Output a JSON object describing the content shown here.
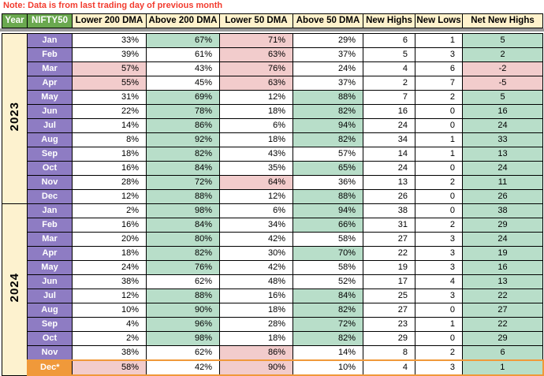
{
  "note": "Note: Data is from last trading day of previous month",
  "colors": {
    "note_red": "#f23b2e",
    "header_tan": "#fff2cc",
    "header_green": "#6aa84f",
    "year_cream": "#fdf2cf",
    "month_purple": "#8e7cc3",
    "dec_orange": "#f0993a",
    "cell_green": "#b8dec9",
    "cell_pink": "#f2cccc",
    "frozen_band_gray": "#9b9b9b"
  },
  "table": {
    "headers": [
      "Year",
      "NIFTY50",
      "Lower 200 DMA",
      "Above 200 DMA",
      "Lower 50 DMA",
      "Above 50 DMA",
      "New Highs",
      "New Lows",
      "Net New Highs"
    ],
    "years": [
      {
        "label": "2023",
        "rows": [
          {
            "month": "Jan",
            "values": [
              "33%",
              "67%",
              "71%",
              "29%",
              "6",
              "1",
              "5"
            ],
            "fills": [
              "w",
              "g",
              "p",
              "w",
              "w",
              "w",
              "g"
            ]
          },
          {
            "month": "Feb",
            "values": [
              "39%",
              "61%",
              "63%",
              "37%",
              "5",
              "3",
              "2"
            ],
            "fills": [
              "w",
              "w",
              "p",
              "w",
              "w",
              "w",
              "g"
            ]
          },
          {
            "month": "Mar",
            "values": [
              "57%",
              "43%",
              "76%",
              "24%",
              "4",
              "6",
              "-2"
            ],
            "fills": [
              "p",
              "w",
              "p",
              "w",
              "w",
              "w",
              "p"
            ]
          },
          {
            "month": "Apr",
            "values": [
              "55%",
              "45%",
              "63%",
              "37%",
              "2",
              "7",
              "-5"
            ],
            "fills": [
              "p",
              "w",
              "p",
              "w",
              "w",
              "w",
              "p"
            ]
          },
          {
            "month": "May",
            "values": [
              "31%",
              "69%",
              "12%",
              "88%",
              "7",
              "2",
              "5"
            ],
            "fills": [
              "w",
              "g",
              "w",
              "g",
              "w",
              "w",
              "g"
            ]
          },
          {
            "month": "Jun",
            "values": [
              "22%",
              "78%",
              "18%",
              "82%",
              "16",
              "0",
              "16"
            ],
            "fills": [
              "w",
              "g",
              "w",
              "g",
              "w",
              "w",
              "g"
            ]
          },
          {
            "month": "Jul",
            "values": [
              "14%",
              "86%",
              "6%",
              "94%",
              "24",
              "0",
              "24"
            ],
            "fills": [
              "w",
              "g",
              "w",
              "g",
              "w",
              "w",
              "g"
            ]
          },
          {
            "month": "Aug",
            "values": [
              "8%",
              "92%",
              "18%",
              "82%",
              "34",
              "1",
              "33"
            ],
            "fills": [
              "w",
              "g",
              "w",
              "g",
              "w",
              "w",
              "g"
            ]
          },
          {
            "month": "Sep",
            "values": [
              "18%",
              "82%",
              "43%",
              "57%",
              "14",
              "1",
              "13"
            ],
            "fills": [
              "w",
              "g",
              "w",
              "w",
              "w",
              "w",
              "g"
            ]
          },
          {
            "month": "Oct",
            "values": [
              "16%",
              "84%",
              "35%",
              "65%",
              "24",
              "0",
              "24"
            ],
            "fills": [
              "w",
              "g",
              "w",
              "g",
              "w",
              "w",
              "g"
            ]
          },
          {
            "month": "Nov",
            "values": [
              "28%",
              "72%",
              "64%",
              "36%",
              "13",
              "2",
              "11"
            ],
            "fills": [
              "w",
              "g",
              "p",
              "w",
              "w",
              "w",
              "g"
            ]
          },
          {
            "month": "Dec",
            "values": [
              "12%",
              "88%",
              "12%",
              "88%",
              "26",
              "0",
              "26"
            ],
            "fills": [
              "w",
              "g",
              "w",
              "g",
              "w",
              "w",
              "g"
            ]
          }
        ]
      },
      {
        "label": "2024",
        "rows": [
          {
            "month": "Jan",
            "values": [
              "2%",
              "98%",
              "6%",
              "94%",
              "38",
              "0",
              "38"
            ],
            "fills": [
              "w",
              "g",
              "w",
              "g",
              "w",
              "w",
              "g"
            ]
          },
          {
            "month": "Feb",
            "values": [
              "16%",
              "84%",
              "34%",
              "66%",
              "31",
              "2",
              "29"
            ],
            "fills": [
              "w",
              "g",
              "w",
              "g",
              "w",
              "w",
              "g"
            ]
          },
          {
            "month": "Mar",
            "values": [
              "20%",
              "80%",
              "42%",
              "58%",
              "27",
              "3",
              "24"
            ],
            "fills": [
              "w",
              "g",
              "w",
              "w",
              "w",
              "w",
              "g"
            ]
          },
          {
            "month": "Apr",
            "values": [
              "18%",
              "82%",
              "30%",
              "70%",
              "22",
              "3",
              "19"
            ],
            "fills": [
              "w",
              "g",
              "w",
              "g",
              "w",
              "w",
              "g"
            ]
          },
          {
            "month": "May",
            "values": [
              "24%",
              "76%",
              "42%",
              "58%",
              "19",
              "3",
              "16"
            ],
            "fills": [
              "w",
              "g",
              "w",
              "w",
              "w",
              "w",
              "g"
            ]
          },
          {
            "month": "Jun",
            "values": [
              "38%",
              "62%",
              "48%",
              "52%",
              "17",
              "4",
              "13"
            ],
            "fills": [
              "w",
              "w",
              "w",
              "w",
              "w",
              "w",
              "g"
            ]
          },
          {
            "month": "Jul",
            "values": [
              "12%",
              "88%",
              "16%",
              "84%",
              "25",
              "3",
              "22"
            ],
            "fills": [
              "w",
              "g",
              "w",
              "g",
              "w",
              "w",
              "g"
            ]
          },
          {
            "month": "Aug",
            "values": [
              "10%",
              "90%",
              "18%",
              "82%",
              "27",
              "0",
              "27"
            ],
            "fills": [
              "w",
              "g",
              "w",
              "g",
              "w",
              "w",
              "g"
            ]
          },
          {
            "month": "Sep",
            "values": [
              "4%",
              "96%",
              "28%",
              "72%",
              "23",
              "1",
              "22"
            ],
            "fills": [
              "w",
              "g",
              "w",
              "g",
              "w",
              "w",
              "g"
            ]
          },
          {
            "month": "Oct",
            "values": [
              "2%",
              "98%",
              "18%",
              "82%",
              "29",
              "0",
              "29"
            ],
            "fills": [
              "w",
              "g",
              "w",
              "g",
              "w",
              "w",
              "g"
            ]
          },
          {
            "month": "Nov",
            "values": [
              "38%",
              "62%",
              "86%",
              "14%",
              "8",
              "2",
              "6"
            ],
            "fills": [
              "w",
              "w",
              "p",
              "w",
              "w",
              "w",
              "g"
            ]
          },
          {
            "month": "Dec*",
            "highlight": true,
            "values": [
              "58%",
              "42%",
              "90%",
              "10%",
              "4",
              "3",
              "1"
            ],
            "fills": [
              "p",
              "w",
              "p",
              "w",
              "w",
              "w",
              "g"
            ]
          }
        ]
      }
    ]
  }
}
